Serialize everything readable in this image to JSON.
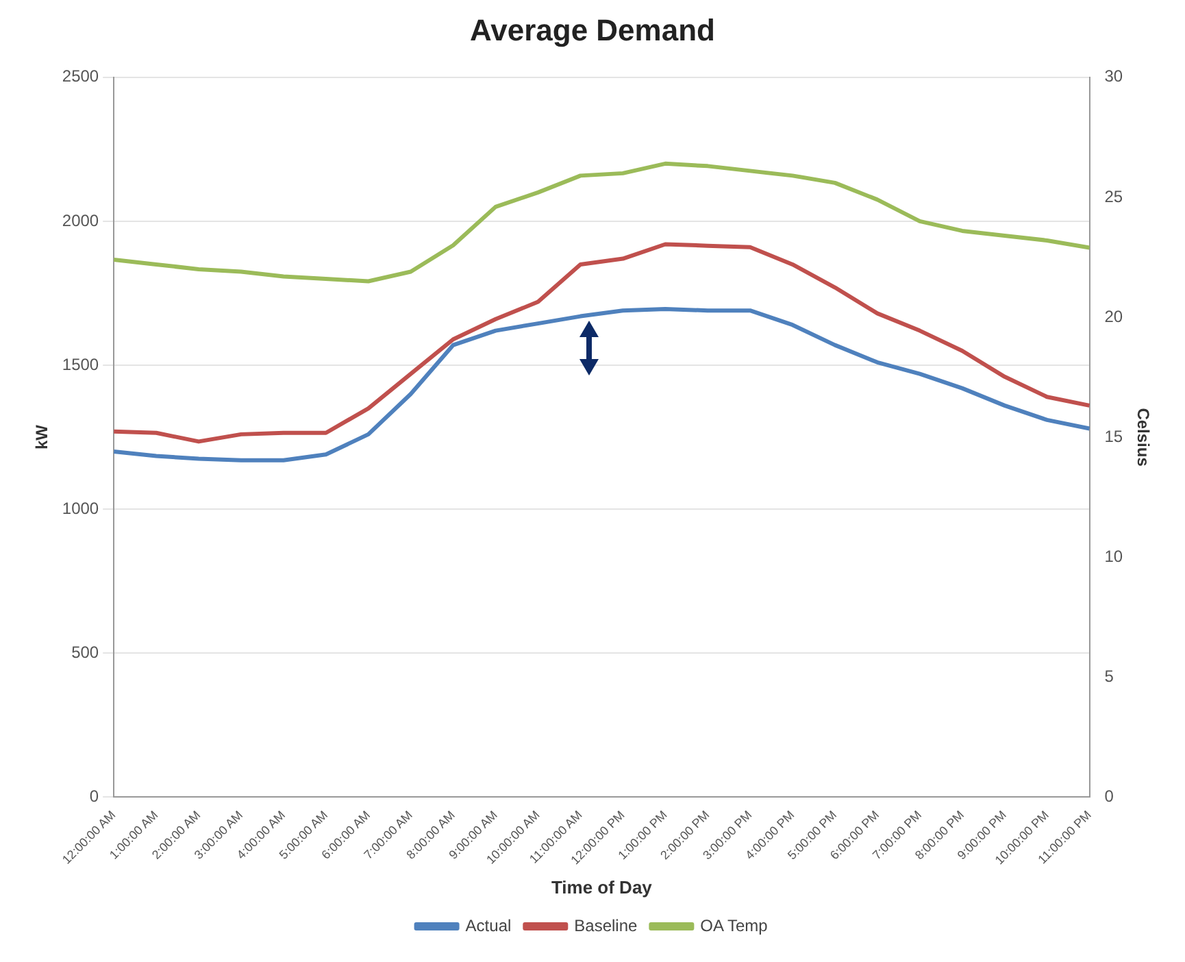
{
  "chart_data": {
    "type": "line",
    "title": "Average Demand",
    "xlabel": "Time of Day",
    "ylabel": "kW",
    "y2label": "Celsius",
    "categories": [
      "12:00:00 AM",
      "1:00:00 AM",
      "2:00:00 AM",
      "3:00:00 AM",
      "4:00:00 AM",
      "5:00:00 AM",
      "6:00:00 AM",
      "7:00:00 AM",
      "8:00:00 AM",
      "9:00:00 AM",
      "10:00:00 AM",
      "11:00:00 AM",
      "12:00:00 PM",
      "1:00:00 PM",
      "2:00:00 PM",
      "3:00:00 PM",
      "4:00:00 PM",
      "5:00:00 PM",
      "6:00:00 PM",
      "7:00:00 PM",
      "8:00:00 PM",
      "9:00:00 PM",
      "10:00:00 PM",
      "11:00:00 PM"
    ],
    "series": [
      {
        "name": "Actual",
        "color": "#4f81bd",
        "values": [
          1200,
          1185,
          1175,
          1170,
          1170,
          1190,
          1260,
          1400,
          1570,
          1620,
          1645,
          1670,
          1690,
          1695,
          1690,
          1690,
          1640,
          1570,
          1510,
          1470,
          1420,
          1360,
          1310,
          1280
        ]
      },
      {
        "name": "Baseline",
        "color": "#c0504d",
        "values": [
          1270,
          1265,
          1235,
          1260,
          1265,
          1265,
          1350,
          1470,
          1590,
          1660,
          1720,
          1850,
          1870,
          1920,
          1915,
          1910,
          1850,
          1770,
          1680,
          1620,
          1550,
          1460,
          1390,
          1360
        ]
      },
      {
        "name": "OA Temp",
        "color": "#9bbb59",
        "axis": "y2",
        "values": [
          22.4,
          22.2,
          22.0,
          21.9,
          21.7,
          21.6,
          21.5,
          21.9,
          23.0,
          24.6,
          25.2,
          25.9,
          26.0,
          26.4,
          26.3,
          26.1,
          25.9,
          25.6,
          24.9,
          24.0,
          23.6,
          23.4,
          23.2,
          22.9
        ]
      }
    ],
    "ylim": [
      0,
      2500
    ],
    "yticks": [
      0,
      500,
      1000,
      1500,
      2000,
      2500
    ],
    "y2lim": [
      0,
      30
    ],
    "y2ticks": [
      0,
      5,
      10,
      15,
      20,
      25,
      30
    ],
    "grid": "y",
    "legend": "bottom",
    "marker": "none",
    "line_style": "solid"
  }
}
